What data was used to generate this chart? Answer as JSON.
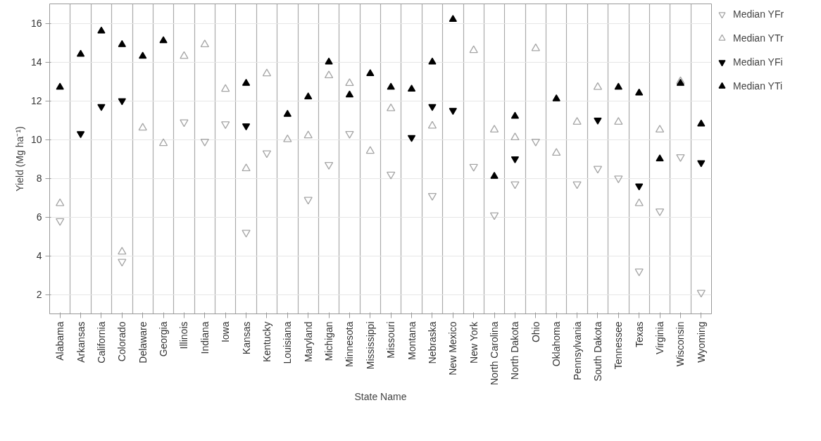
{
  "chart_data": {
    "type": "scatter",
    "xlabel": "State Name",
    "ylabel": "Yield (Mg ha⁻¹)",
    "categories": [
      "Alabama",
      "Arkansas",
      "California",
      "Colorado",
      "Delaware",
      "Georgia",
      "Illinois",
      "Indiana",
      "Iowa",
      "Kansas",
      "Kentucky",
      "Louisiana",
      "Maryland",
      "Michigan",
      "Minnesota",
      "Mississippi",
      "Missouri",
      "Montana",
      "Nebraska",
      "New Mexico",
      "New York",
      "North Carolina",
      "North Dakota",
      "Ohio",
      "Oklahoma",
      "Pennsylvania",
      "South Dakota",
      "Tennessee",
      "Texas",
      "Virginia",
      "Wisconsin",
      "Wyoming"
    ],
    "series": [
      {
        "name": "Median YFr",
        "color": "#a6a6a6",
        "marker": "triangle_down_open",
        "values": [
          5.8,
          null,
          null,
          3.7,
          null,
          null,
          10.9,
          9.9,
          10.8,
          5.2,
          9.3,
          null,
          6.9,
          8.7,
          10.3,
          null,
          8.2,
          null,
          7.1,
          null,
          8.6,
          6.1,
          7.7,
          9.9,
          null,
          7.7,
          8.5,
          8.0,
          3.2,
          6.3,
          9.1,
          2.1
        ]
      },
      {
        "name": "Median YTr",
        "color": "#a6a6a6",
        "marker": "triangle_open",
        "values": [
          6.7,
          null,
          null,
          4.2,
          10.6,
          9.8,
          14.3,
          14.9,
          12.6,
          8.5,
          13.4,
          10.0,
          10.2,
          13.3,
          12.9,
          9.4,
          11.6,
          null,
          10.7,
          null,
          14.6,
          10.5,
          10.1,
          14.7,
          9.3,
          10.9,
          12.7,
          10.9,
          6.7,
          10.5,
          13.0,
          null
        ]
      },
      {
        "name": "Median YFi",
        "color": "#000000",
        "marker": "triangle_down",
        "values": [
          null,
          10.3,
          11.7,
          12.0,
          null,
          null,
          null,
          null,
          null,
          10.7,
          null,
          null,
          null,
          null,
          null,
          null,
          null,
          10.1,
          11.7,
          11.5,
          null,
          null,
          9.0,
          null,
          null,
          null,
          11.0,
          null,
          7.6,
          null,
          null,
          8.8
        ]
      },
      {
        "name": "Median YTi",
        "color": "#000000",
        "marker": "triangle",
        "values": [
          12.7,
          14.4,
          15.6,
          14.9,
          14.3,
          15.1,
          null,
          null,
          null,
          12.9,
          null,
          11.3,
          12.2,
          14.0,
          12.3,
          13.4,
          12.7,
          12.6,
          14.0,
          16.2,
          null,
          8.1,
          11.2,
          null,
          12.1,
          null,
          null,
          12.7,
          12.4,
          9.0,
          12.9,
          10.8
        ]
      }
    ],
    "ylim": [
      1,
      17
    ],
    "yticks": [
      2,
      4,
      6,
      8,
      10,
      12,
      14,
      16
    ],
    "grid": true,
    "legend": "right"
  }
}
